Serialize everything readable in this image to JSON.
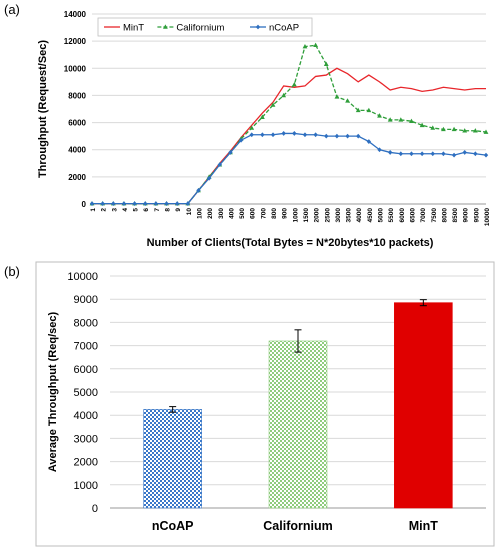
{
  "panels": {
    "a_label": "(a)",
    "b_label": "(b)"
  },
  "chart_data": [
    {
      "type": "line",
      "xlabel": "Number of Clients(Total Bytes = N*20bytes*10 packets)",
      "ylabel": "Throughput (Request/Sec)",
      "ylim": [
        0,
        14000
      ],
      "yticks": [
        0,
        2000,
        4000,
        6000,
        8000,
        10000,
        12000,
        14000
      ],
      "grid": true,
      "legend": "top-left",
      "categories": [
        "1",
        "2",
        "3",
        "4",
        "5",
        "6",
        "7",
        "8",
        "9",
        "10",
        "100",
        "200",
        "300",
        "400",
        "500",
        "600",
        "700",
        "800",
        "900",
        "1000",
        "1500",
        "2000",
        "2500",
        "3000",
        "3500",
        "4000",
        "4500",
        "5000",
        "5500",
        "6000",
        "6500",
        "7000",
        "7500",
        "8000",
        "8500",
        "9000",
        "9500",
        "10000"
      ],
      "series": [
        {
          "name": "MinT",
          "color": "#e8262b",
          "marker": "none",
          "values": [
            30,
            30,
            30,
            30,
            30,
            30,
            30,
            30,
            30,
            30,
            1000,
            2000,
            3000,
            3900,
            4900,
            5800,
            6700,
            7500,
            8700,
            8600,
            8700,
            9400,
            9500,
            10000,
            9600,
            9000,
            9500,
            9000,
            8400,
            8600,
            8500,
            8300,
            8400,
            8600,
            8500,
            8400,
            8500,
            8500
          ]
        },
        {
          "name": "Californium",
          "color": "#2f9e3a",
          "marker": "triangle",
          "values": [
            30,
            30,
            30,
            30,
            30,
            30,
            30,
            30,
            30,
            30,
            1000,
            2000,
            2900,
            3800,
            4800,
            5600,
            6400,
            7300,
            8000,
            8800,
            11600,
            11700,
            10300,
            7900,
            7600,
            6900,
            6900,
            6500,
            6200,
            6200,
            6100,
            5800,
            5600,
            5500,
            5500,
            5400,
            5400,
            5300
          ]
        },
        {
          "name": "nCoAP",
          "color": "#2e6fc0",
          "marker": "diamond",
          "values": [
            30,
            30,
            30,
            30,
            30,
            30,
            30,
            30,
            30,
            30,
            1000,
            1900,
            2900,
            3800,
            4700,
            5100,
            5100,
            5100,
            5200,
            5200,
            5100,
            5100,
            5000,
            5000,
            5000,
            5000,
            4600,
            4000,
            3800,
            3700,
            3700,
            3700,
            3700,
            3700,
            3600,
            3800,
            3700,
            3600
          ]
        }
      ]
    },
    {
      "type": "bar",
      "ylabel": "Average Throughput (Req/sec)",
      "ylim": [
        0,
        10000
      ],
      "yticks": [
        0,
        1000,
        2000,
        3000,
        4000,
        5000,
        6000,
        7000,
        8000,
        9000,
        10000
      ],
      "grid": true,
      "categories": [
        "nCoAP",
        "Californium",
        "MinT"
      ],
      "values": [
        4250,
        7200,
        8850
      ],
      "errors": [
        120,
        480,
        130
      ],
      "colors": [
        "#3a78c9",
        "#8fcc7e",
        "#e00000"
      ],
      "patterns": [
        "checker",
        "checker",
        "solid"
      ]
    }
  ]
}
